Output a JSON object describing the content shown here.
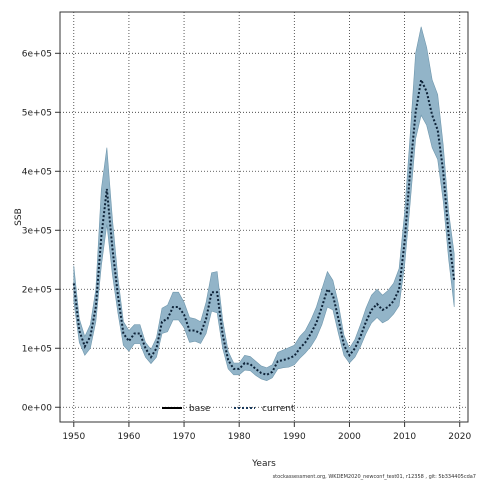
{
  "chart_data": {
    "type": "line",
    "xlabel": "Years",
    "ylabel": "SSB",
    "xlim": [
      1947.5,
      2021.5
    ],
    "ylim": [
      -25000,
      670000
    ],
    "x_ticks": [
      1950,
      1960,
      1970,
      1980,
      1990,
      2000,
      2010,
      2020
    ],
    "x_tick_labels": [
      "1950",
      "1960",
      "1970",
      "1980",
      "1990",
      "2000",
      "2010",
      "2020"
    ],
    "y_ticks": [
      0,
      100000,
      200000,
      300000,
      400000,
      500000,
      600000
    ],
    "y_tick_labels": [
      "0e+00",
      "1e+05",
      "2e+05",
      "3e+05",
      "4e+05",
      "5e+05",
      "6e+05"
    ],
    "grid": true,
    "legend_position": "bottom-center",
    "legend": [
      {
        "label": "base",
        "style": "solid",
        "color": "#000000"
      },
      {
        "label": "current",
        "style": "dotted",
        "color": "#1a3a5c"
      }
    ],
    "colors": {
      "band": "#92b4c8",
      "band_edge": "#6f97ad",
      "line": "#0d2238",
      "grid": "#333333"
    },
    "x": [
      1950,
      1951,
      1952,
      1953,
      1954,
      1955,
      1956,
      1957,
      1958,
      1959,
      1960,
      1961,
      1962,
      1963,
      1964,
      1965,
      1966,
      1967,
      1968,
      1969,
      1970,
      1971,
      1972,
      1973,
      1974,
      1975,
      1976,
      1977,
      1978,
      1979,
      1980,
      1981,
      1982,
      1983,
      1984,
      1985,
      1986,
      1987,
      1988,
      1989,
      1990,
      1991,
      1992,
      1993,
      1994,
      1995,
      1996,
      1997,
      1998,
      1999,
      2000,
      2001,
      2002,
      2003,
      2004,
      2005,
      2006,
      2007,
      2008,
      2009,
      2010,
      2011,
      2012,
      2013,
      2014,
      2015,
      2016,
      2017,
      2018,
      2019
    ],
    "series": [
      {
        "name": "current",
        "values": [
          210000,
          130000,
          103000,
          120000,
          170000,
          290000,
          370000,
          270000,
          190000,
          125000,
          112000,
          125000,
          125000,
          100000,
          85000,
          100000,
          145000,
          150000,
          170000,
          170000,
          157000,
          130000,
          130000,
          125000,
          150000,
          195000,
          195000,
          123000,
          80000,
          65000,
          65000,
          75000,
          73000,
          65000,
          58000,
          55000,
          60000,
          78000,
          80000,
          83000,
          87000,
          100000,
          110000,
          125000,
          143000,
          170000,
          200000,
          190000,
          150000,
          105000,
          88000,
          100000,
          120000,
          145000,
          165000,
          175000,
          165000,
          170000,
          180000,
          200000,
          280000,
          400000,
          500000,
          555000,
          535000,
          495000,
          470000,
          400000,
          290000,
          215000
        ]
      }
    ],
    "band": {
      "name": "uncertainty",
      "upper": [
        240000,
        150000,
        120000,
        140000,
        200000,
        370000,
        440000,
        320000,
        220000,
        145000,
        130000,
        140000,
        140000,
        110000,
        98000,
        118000,
        168000,
        173000,
        195000,
        195000,
        178000,
        152000,
        150000,
        145000,
        178000,
        228000,
        230000,
        148000,
        95000,
        75000,
        75000,
        88000,
        86000,
        78000,
        70000,
        67000,
        72000,
        93000,
        97000,
        101000,
        105000,
        120000,
        130000,
        148000,
        170000,
        200000,
        230000,
        215000,
        175000,
        122000,
        100000,
        115000,
        140000,
        168000,
        190000,
        200000,
        190000,
        198000,
        210000,
        235000,
        330000,
        460000,
        600000,
        645000,
        610000,
        555000,
        530000,
        445000,
        330000,
        260000
      ],
      "lower": [
        180000,
        110000,
        88000,
        100000,
        145000,
        240000,
        310000,
        225000,
        160000,
        105000,
        95000,
        108000,
        108000,
        85000,
        74000,
        85000,
        125000,
        128000,
        148000,
        148000,
        135000,
        110000,
        112000,
        108000,
        125000,
        163000,
        160000,
        100000,
        65000,
        55000,
        55000,
        63000,
        62000,
        54000,
        48000,
        45000,
        50000,
        65000,
        67000,
        68000,
        72000,
        83000,
        92000,
        103000,
        118000,
        140000,
        170000,
        165000,
        125000,
        88000,
        75000,
        85000,
        103000,
        125000,
        143000,
        152000,
        143000,
        148000,
        158000,
        172000,
        240000,
        345000,
        455000,
        495000,
        478000,
        440000,
        420000,
        350000,
        250000,
        170000
      ]
    }
  },
  "footer": "stockassessment.org, WKDEM2020_newconf_test01, r12358 , git: 5b334405cda7"
}
